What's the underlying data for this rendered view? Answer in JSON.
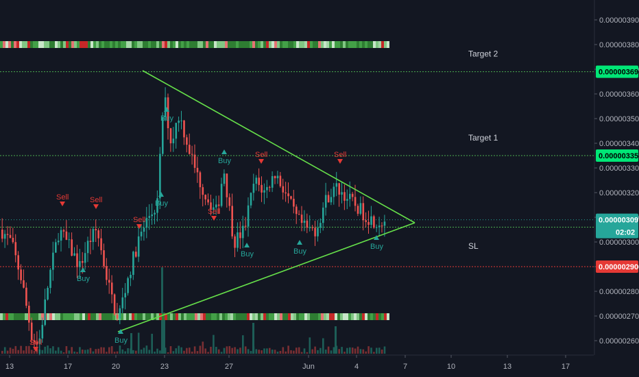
{
  "colors": {
    "background": "#131722",
    "grid": "#1f2430",
    "up": "#26a69a",
    "down": "#ef5350",
    "line_green": "#4caf50",
    "wedge": "#66e04a",
    "sl_red": "#e53935",
    "tag_green": "#00e676",
    "tag_red": "#e53935",
    "current": "#26a69a"
  },
  "chart_data": {
    "type": "candlestick",
    "x_tick_labels": [
      "13",
      "17",
      "20",
      "23",
      "27",
      "Jun",
      "4",
      "7",
      "10",
      "13",
      "17"
    ],
    "y_tick_labels": [
      "0.00000260",
      "0.00000270",
      "0.00000280",
      "0.00000290",
      "0.00000300",
      "0.00000310",
      "0.00000320",
      "0.00000330",
      "0.00000340",
      "0.00000350",
      "0.00000360",
      "0.00000370",
      "0.00000380",
      "0.00000390"
    ],
    "ylim": [
      2.55e-06,
      3.95e-06
    ],
    "levels": [
      {
        "label": "Target 2",
        "value": "0.00000369",
        "role": "target"
      },
      {
        "label": "Target 1",
        "value": "0.00000335",
        "role": "target"
      },
      {
        "label": "",
        "value": "0.00000306",
        "role": "entry"
      },
      {
        "label": "SL",
        "value": "0.00000290",
        "role": "stop"
      }
    ],
    "current_price": {
      "value": "0.00000309",
      "countdown": "02:02"
    },
    "signals": [
      {
        "type": "Sell",
        "slot": 1
      },
      {
        "type": "Buy",
        "slot": 2
      },
      {
        "type": "Sell",
        "slot": 3
      },
      {
        "type": "Buy",
        "slot": 4
      },
      {
        "type": "Buy",
        "slot": 5
      },
      {
        "type": "Sell",
        "slot": 6
      },
      {
        "type": "Buy",
        "slot": 7
      },
      {
        "type": "Sell",
        "slot": 8
      },
      {
        "type": "Buy",
        "slot": 9
      },
      {
        "type": "Buy",
        "slot": 10
      },
      {
        "type": "Sell",
        "slot": 11
      },
      {
        "type": "Buy",
        "slot": 12
      },
      {
        "type": "Sell",
        "slot": 13
      },
      {
        "type": "Buy",
        "slot": 14
      },
      {
        "type": "Sell",
        "slot": 15
      },
      {
        "type": "Buy",
        "slot": 16
      }
    ],
    "triangle": {
      "upper": "descending resistance",
      "lower": "ascending support"
    },
    "volume": true,
    "grid": false
  }
}
